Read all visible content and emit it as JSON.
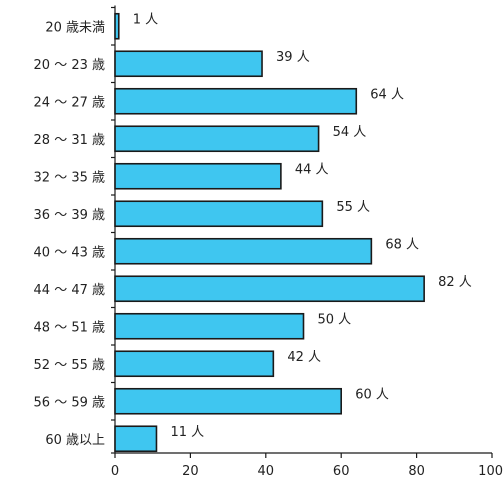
{
  "chart_data": {
    "type": "bar",
    "orientation": "horizontal",
    "categories": [
      "20 歳未満",
      "20 ～ 23 歳",
      "24 ～ 27 歳",
      "28 ～ 31 歳",
      "32 ～ 35 歳",
      "36 ～ 39 歳",
      "40 ～ 43 歳",
      "44 ～ 47 歳",
      "48 ～ 51 歳",
      "52 ～ 55 歳",
      "56 ～ 59 歳",
      "60 歳以上"
    ],
    "values": [
      1,
      39,
      64,
      54,
      44,
      55,
      68,
      82,
      50,
      42,
      60,
      11
    ],
    "value_labels": [
      "1 人",
      "39 人",
      "64 人",
      "54 人",
      "44 人",
      "55 人",
      "68 人",
      "82 人",
      "50 人",
      "42 人",
      "60 人",
      "11 人"
    ],
    "xlim": [
      0,
      100
    ],
    "x_ticks": [
      "0",
      "20",
      "40",
      "60",
      "80",
      "100"
    ],
    "title": "",
    "xlabel": "",
    "ylabel": "",
    "grid": false,
    "bar_color": "#3fc6f0",
    "bar_outline_color": "#1a1a1a"
  }
}
